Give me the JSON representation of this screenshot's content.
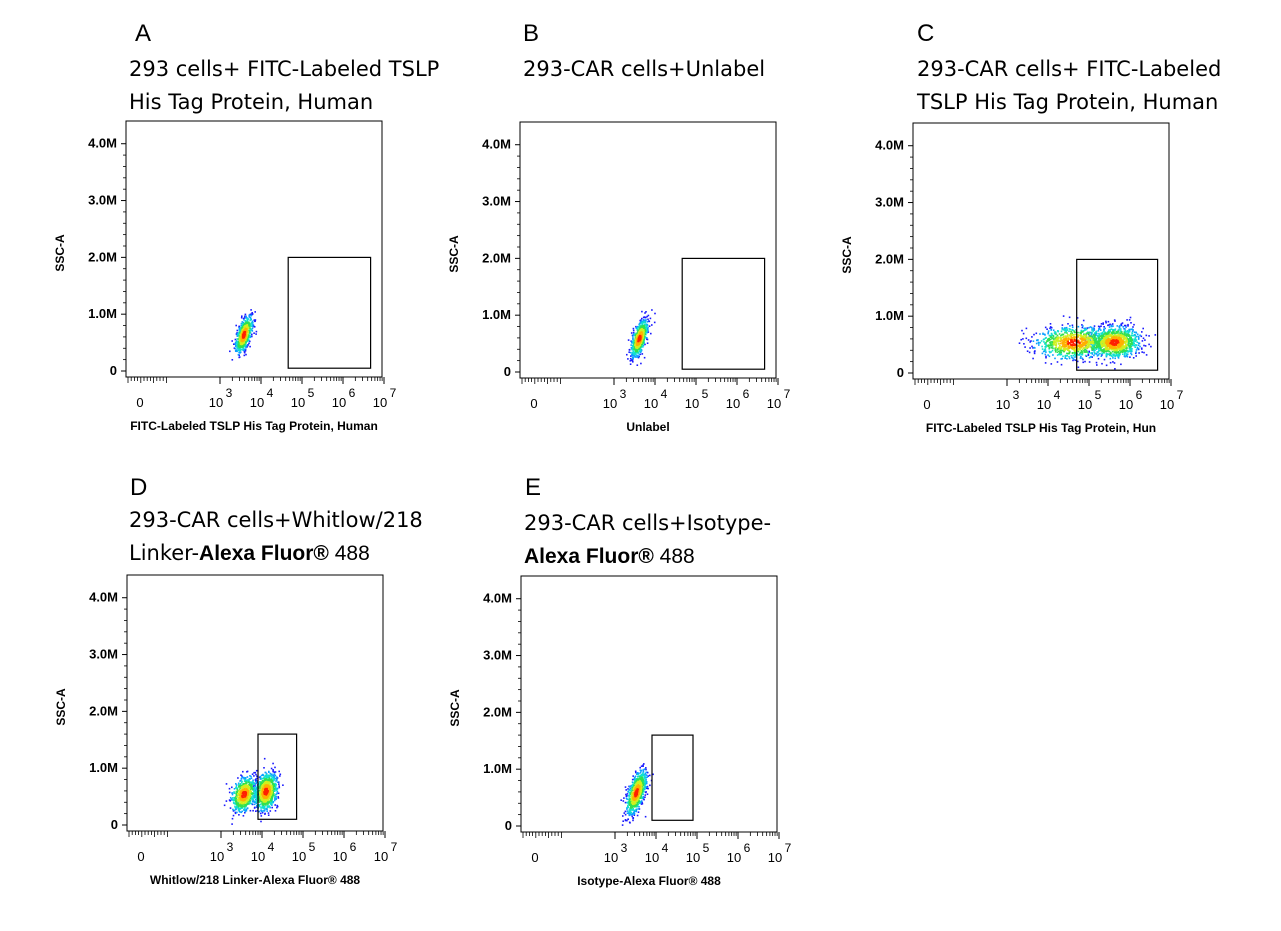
{
  "chart_data": [
    {
      "id": "A",
      "type": "scatter",
      "panel_label": "A",
      "title_lines": [
        "293 cells+ FITC-Labeled TSLP",
        "His Tag Protein, Human"
      ],
      "xlabel": "FITC-Labeled TSLP His Tag Protein, Human",
      "ylabel": "SSC-A",
      "x_scale": "biexponential",
      "x_ticks": [
        {
          "base": "0",
          "exp": ""
        },
        {
          "base": "10",
          "exp": "3"
        },
        {
          "base": "10",
          "exp": "4"
        },
        {
          "base": "10",
          "exp": "5"
        },
        {
          "base": "10",
          "exp": "6"
        },
        {
          "base": "10",
          "exp": "7"
        }
      ],
      "y_ticks": [
        "0",
        "1.0M",
        "2.0M",
        "3.0M",
        "4.0M"
      ],
      "ylim": [
        0,
        4400000
      ],
      "gate": {
        "x_from": 46000,
        "x_to": 4700000,
        "y_from": 50000,
        "y_to": 2000000
      },
      "populations": [
        {
          "x_center": 3700,
          "x_spread": 0.1,
          "y_center": 650000,
          "y_spread": 160000,
          "tilt": 1.0,
          "count": 700
        }
      ]
    },
    {
      "id": "B",
      "type": "scatter",
      "panel_label": "B",
      "title_lines": [
        "293-CAR cells+Unlabel"
      ],
      "xlabel": "Unlabel",
      "ylabel": "SSC-A",
      "x_scale": "biexponential",
      "x_ticks": [
        {
          "base": "0",
          "exp": ""
        },
        {
          "base": "10",
          "exp": "3"
        },
        {
          "base": "10",
          "exp": "4"
        },
        {
          "base": "10",
          "exp": "5"
        },
        {
          "base": "10",
          "exp": "6"
        },
        {
          "base": "10",
          "exp": "7"
        }
      ],
      "y_ticks": [
        "0",
        "1.0M",
        "2.0M",
        "3.0M",
        "4.0M"
      ],
      "ylim": [
        0,
        4400000
      ],
      "gate": {
        "x_from": 46000,
        "x_to": 4700000,
        "y_from": 50000,
        "y_to": 2000000
      },
      "populations": [
        {
          "x_center": 4000,
          "x_spread": 0.1,
          "y_center": 600000,
          "y_spread": 160000,
          "tilt": 1.0,
          "count": 700
        }
      ]
    },
    {
      "id": "C",
      "type": "scatter",
      "panel_label": "C",
      "title_lines": [
        "293-CAR cells+ FITC-Labeled",
        "TSLP His Tag Protein, Human"
      ],
      "xlabel": "FITC-Labeled TSLP His Tag Protein, Hun",
      "ylabel": "SSC-A",
      "x_scale": "biexponential",
      "x_ticks": [
        {
          "base": "0",
          "exp": ""
        },
        {
          "base": "10",
          "exp": "3"
        },
        {
          "base": "10",
          "exp": "4"
        },
        {
          "base": "10",
          "exp": "5"
        },
        {
          "base": "10",
          "exp": "6"
        },
        {
          "base": "10",
          "exp": "7"
        }
      ],
      "y_ticks": [
        "0",
        "1.0M",
        "2.0M",
        "3.0M",
        "4.0M"
      ],
      "ylim": [
        0,
        4400000
      ],
      "gate": {
        "x_from": 50000,
        "x_to": 4700000,
        "y_from": 50000,
        "y_to": 2000000
      },
      "populations": [
        {
          "x_center": 40000,
          "x_spread": 0.45,
          "y_center": 550000,
          "y_spread": 170000,
          "tilt": 0.1,
          "count": 900
        },
        {
          "x_center": 400000,
          "x_spread": 0.3,
          "y_center": 550000,
          "y_spread": 170000,
          "tilt": 0.1,
          "count": 1100
        }
      ]
    },
    {
      "id": "D",
      "type": "scatter",
      "panel_label": "D",
      "title_lines": [
        "293-CAR   cells+Whitlow/218",
        "Linker-Alexa Fluor® 488"
      ],
      "title_bold": "Alexa Fluor®",
      "xlabel": "Whitlow/218 Linker-Alexa Fluor® 488",
      "ylabel": "SSC-A",
      "x_scale": "biexponential",
      "x_ticks": [
        {
          "base": "0",
          "exp": ""
        },
        {
          "base": "10",
          "exp": "3"
        },
        {
          "base": "10",
          "exp": "4"
        },
        {
          "base": "10",
          "exp": "5"
        },
        {
          "base": "10",
          "exp": "6"
        },
        {
          "base": "10",
          "exp": "7"
        }
      ],
      "y_ticks": [
        "0",
        "1.0M",
        "2.0M",
        "3.0M",
        "4.0M"
      ],
      "ylim": [
        0,
        4400000
      ],
      "gate": {
        "x_from": 8000,
        "x_to": 70000,
        "y_from": 100000,
        "y_to": 1600000
      },
      "populations": [
        {
          "x_center": 3500,
          "x_spread": 0.15,
          "y_center": 550000,
          "y_spread": 180000,
          "tilt": 0.4,
          "count": 700
        },
        {
          "x_center": 12000,
          "x_spread": 0.14,
          "y_center": 600000,
          "y_spread": 200000,
          "tilt": 0.3,
          "count": 900
        }
      ]
    },
    {
      "id": "E",
      "type": "scatter",
      "panel_label": "E",
      "title_lines": [
        "293-CAR  cells+Isotype-",
        "Alexa Fluor® 488"
      ],
      "title_bold": "Alexa Fluor®",
      "xlabel": "Isotype-Alexa Fluor® 488",
      "ylabel": "SSC-A",
      "x_scale": "biexponential",
      "x_ticks": [
        {
          "base": "0",
          "exp": ""
        },
        {
          "base": "10",
          "exp": "3"
        },
        {
          "base": "10",
          "exp": "4"
        },
        {
          "base": "10",
          "exp": "5"
        },
        {
          "base": "10",
          "exp": "6"
        },
        {
          "base": "10",
          "exp": "7"
        }
      ],
      "y_ticks": [
        "0",
        "1.0M",
        "2.0M",
        "3.0M",
        "4.0M"
      ],
      "ylim": [
        0,
        4400000
      ],
      "gate": {
        "x_from": 8000,
        "x_to": 80000,
        "y_from": 100000,
        "y_to": 1600000
      },
      "populations": [
        {
          "x_center": 3200,
          "x_spread": 0.12,
          "y_center": 600000,
          "y_spread": 190000,
          "tilt": 1.0,
          "count": 800
        }
      ]
    }
  ],
  "colors": {
    "density": [
      "#1a1aff",
      "#0aa0ff",
      "#10e0d0",
      "#30e050",
      "#d0f020",
      "#ffb000",
      "#ff2000"
    ],
    "frame": "#000000"
  }
}
